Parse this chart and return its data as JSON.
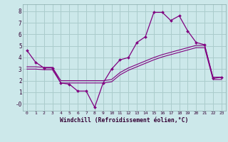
{
  "xlabel": "Windchill (Refroidissement éolien,°C)",
  "background_color": "#cce8ea",
  "grid_color": "#aacccc",
  "line_color": "#800080",
  "xlim": [
    -0.5,
    23.5
  ],
  "ylim": [
    -0.6,
    8.6
  ],
  "xticks": [
    0,
    1,
    2,
    3,
    4,
    5,
    6,
    7,
    8,
    9,
    10,
    11,
    12,
    13,
    14,
    15,
    16,
    17,
    18,
    19,
    20,
    21,
    22,
    23
  ],
  "yticks": [
    0,
    1,
    2,
    3,
    4,
    5,
    6,
    7,
    8
  ],
  "ytick_labels": [
    "-0",
    "1",
    "2",
    "3",
    "4",
    "5",
    "6",
    "7",
    "8"
  ],
  "line1_x": [
    0,
    1,
    2,
    3,
    4,
    5,
    6,
    7,
    8,
    9,
    10,
    11,
    12,
    13,
    14,
    15,
    16,
    17,
    18,
    19,
    20,
    21,
    22,
    23
  ],
  "line1_y": [
    4.6,
    3.6,
    3.1,
    3.1,
    1.8,
    1.7,
    1.1,
    1.1,
    -0.3,
    1.8,
    3.0,
    3.8,
    4.0,
    5.3,
    5.8,
    7.9,
    7.9,
    7.2,
    7.6,
    6.3,
    5.3,
    5.1,
    2.2,
    2.3
  ],
  "line2_x": [
    0,
    1,
    2,
    3,
    4,
    5,
    6,
    7,
    8,
    9,
    10,
    11,
    12,
    13,
    14,
    15,
    16,
    17,
    18,
    19,
    20,
    21,
    22,
    23
  ],
  "line2_y": [
    3.2,
    3.2,
    3.15,
    3.15,
    2.0,
    2.0,
    2.0,
    2.0,
    2.0,
    2.0,
    2.1,
    2.7,
    3.1,
    3.4,
    3.7,
    4.0,
    4.25,
    4.45,
    4.65,
    4.85,
    5.05,
    5.05,
    2.3,
    2.3
  ],
  "line3_x": [
    0,
    1,
    2,
    3,
    4,
    5,
    6,
    7,
    8,
    9,
    10,
    11,
    12,
    13,
    14,
    15,
    16,
    17,
    18,
    19,
    20,
    21,
    22,
    23
  ],
  "line3_y": [
    3.0,
    3.0,
    2.95,
    2.95,
    1.8,
    1.8,
    1.8,
    1.8,
    1.8,
    1.8,
    1.9,
    2.5,
    2.9,
    3.2,
    3.5,
    3.8,
    4.05,
    4.25,
    4.45,
    4.65,
    4.85,
    4.85,
    2.1,
    2.1
  ]
}
